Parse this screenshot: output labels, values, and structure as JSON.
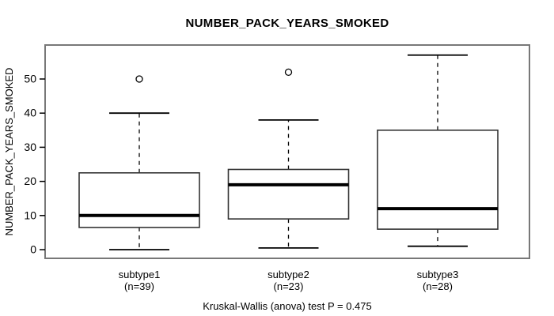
{
  "chart_data": {
    "type": "boxplot",
    "title": "NUMBER_PACK_YEARS_SMOKED",
    "ylabel": "NUMBER_PACK_YEARS_SMOKED",
    "xlabel": "",
    "yticks": [
      0,
      10,
      20,
      30,
      40,
      50
    ],
    "ylim": [
      -2.5,
      60
    ],
    "grid": false,
    "annotation": "Kruskal-Wallis (anova) test P = 0.475",
    "p_value": 0.475,
    "groups": [
      {
        "label": "subtype1",
        "sublabel": "(n=39)",
        "n": 39,
        "whisker_low": 0,
        "q1": 6.5,
        "median": 10,
        "q3": 22.5,
        "whisker_high": 40,
        "outliers": [
          50
        ]
      },
      {
        "label": "subtype2",
        "sublabel": "(n=23)",
        "n": 23,
        "whisker_low": 0.5,
        "q1": 9,
        "median": 19,
        "q3": 23.5,
        "whisker_high": 38,
        "outliers": [
          52
        ]
      },
      {
        "label": "subtype3",
        "sublabel": "(n=28)",
        "n": 28,
        "whisker_low": 1,
        "q1": 6,
        "median": 12,
        "q3": 35,
        "whisker_high": 57,
        "outliers": []
      }
    ]
  },
  "colors": {
    "frame": "#787878",
    "axis": "#000000",
    "box_border": "#333333",
    "median": "#000000",
    "background": "#ffffff"
  }
}
